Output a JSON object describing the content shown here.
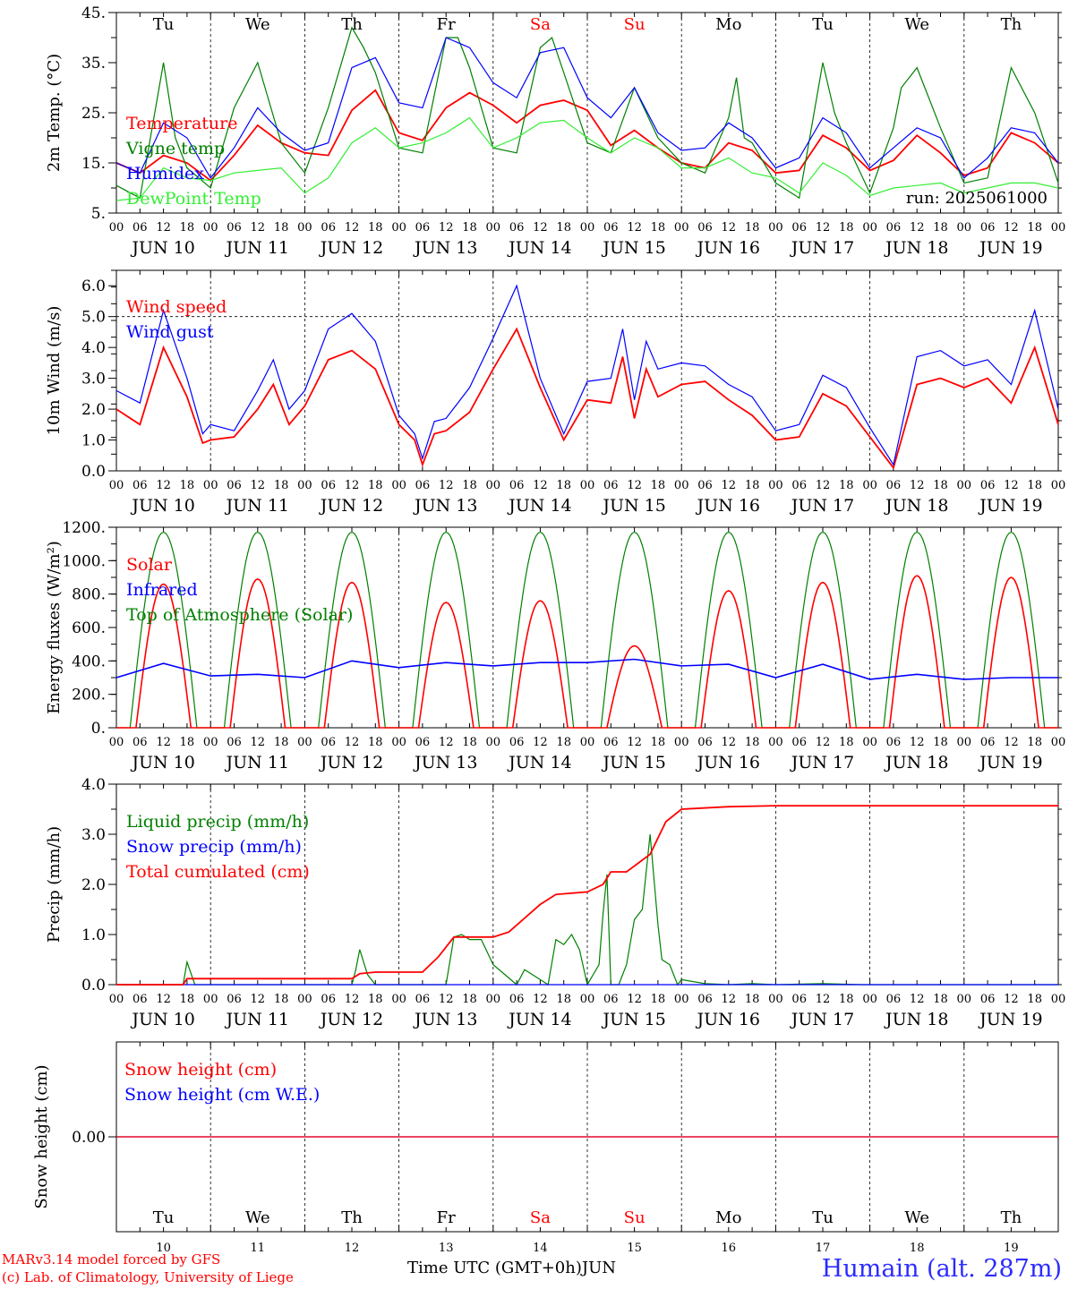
{
  "run_label": "run: 2025061000",
  "day_names": [
    "Tu",
    "We",
    "Th",
    "Fr",
    "Sa",
    "Su",
    "Mo",
    "Tu",
    "We",
    "Th"
  ],
  "weekend_days": [
    4,
    5
  ],
  "date_labels": [
    "JUN 10",
    "JUN 11",
    "JUN 12",
    "JUN 13",
    "JUN 14",
    "JUN 15",
    "JUN 16",
    "JUN 17",
    "JUN 18",
    "JUN 19"
  ],
  "day_numbers": [
    "10",
    "11",
    "12",
    "13",
    "14",
    "15",
    "16",
    "17",
    "18",
    "19"
  ],
  "hour_ticks": [
    "00",
    "06",
    "12",
    "18"
  ],
  "month_label": "JUN",
  "footer": {
    "model": "MARv3.14 model forced by GFS",
    "copyright": "(c) Lab. of Climatology, University of Liege",
    "time_label": "Time UTC (GMT+0h)",
    "station": "Humain (alt. 287m)"
  },
  "colors": {
    "red": "#ff0000",
    "green": "#008000",
    "blue": "#0000ff",
    "lightgreen": "#33ee33"
  },
  "chart_data": [
    {
      "type": "line",
      "ylabel": "2m Temp. (°C)",
      "ylim": [
        5,
        45
      ],
      "ytick_labels": [
        "5.",
        "15.",
        "25.",
        "35.",
        "45."
      ],
      "ytick_values": [
        5,
        15,
        25,
        35,
        45
      ],
      "x_unit": "hours since JUN 10 00 UTC",
      "series": [
        {
          "name": "Temperature",
          "color": "#ff0000",
          "x": [
            0,
            6,
            12,
            18,
            24,
            30,
            36,
            42,
            48,
            54,
            60,
            66,
            72,
            78,
            84,
            90,
            96,
            102,
            108,
            114,
            120,
            126,
            132,
            138,
            144,
            150,
            156,
            162,
            168,
            174,
            180,
            186,
            192,
            198,
            204,
            210,
            216,
            222,
            228,
            234,
            240
          ],
          "y": [
            15,
            13,
            16.5,
            15,
            11.5,
            16.5,
            22.5,
            19,
            17,
            16.5,
            25.5,
            29.5,
            21,
            19.5,
            26,
            29,
            26.5,
            23,
            26.5,
            27.5,
            25.5,
            18.5,
            21.5,
            18,
            15,
            14,
            19,
            17.5,
            13,
            13.5,
            20.5,
            18,
            13.5,
            15.5,
            20.5,
            17,
            12.5,
            14,
            21,
            19,
            15
          ]
        },
        {
          "name": "Vigne temp",
          "color": "#008000",
          "x": [
            0,
            6,
            12,
            15,
            18,
            24,
            30,
            36,
            42,
            48,
            54,
            60,
            63,
            66,
            72,
            78,
            84,
            87,
            90,
            96,
            102,
            108,
            111,
            114,
            120,
            126,
            132,
            138,
            144,
            150,
            156,
            158,
            160,
            162,
            168,
            174,
            180,
            183,
            186,
            192,
            198,
            200,
            204,
            210,
            216,
            222,
            228,
            234,
            240
          ],
          "y": [
            10.5,
            8,
            35,
            20,
            14,
            10,
            26,
            35,
            19,
            13,
            26,
            42,
            38,
            33,
            18,
            17,
            40,
            40,
            34,
            18,
            17,
            38,
            40,
            33,
            19,
            17,
            30,
            20,
            15,
            13,
            24,
            32,
            20,
            19,
            11,
            8,
            35,
            25,
            19,
            9,
            22,
            30,
            34,
            22,
            11,
            12,
            34,
            25,
            11
          ]
        },
        {
          "name": "Humidex",
          "color": "#0000ff",
          "x": [
            0,
            6,
            12,
            18,
            24,
            30,
            36,
            42,
            48,
            54,
            60,
            66,
            72,
            78,
            84,
            90,
            96,
            102,
            108,
            114,
            120,
            126,
            132,
            138,
            144,
            150,
            156,
            162,
            168,
            174,
            180,
            186,
            192,
            198,
            204,
            210,
            216,
            222,
            228,
            234,
            240
          ],
          "y": [
            15,
            13,
            23,
            20,
            12,
            18,
            26,
            21,
            17.5,
            19,
            34,
            36,
            27,
            26,
            40,
            38,
            31,
            28,
            37,
            38,
            28,
            24,
            30,
            21,
            17.5,
            18,
            23,
            20,
            14,
            16,
            24,
            21,
            14,
            18,
            22,
            20,
            12,
            16,
            22,
            21,
            15
          ]
        },
        {
          "name": "DewPoint Temp",
          "color": "#33ee33",
          "x": [
            0,
            6,
            12,
            18,
            24,
            30,
            36,
            42,
            48,
            54,
            60,
            66,
            72,
            78,
            84,
            90,
            96,
            102,
            108,
            114,
            120,
            126,
            132,
            138,
            144,
            150,
            156,
            162,
            168,
            174,
            180,
            186,
            192,
            198,
            204,
            210,
            216,
            222,
            228,
            234,
            240
          ],
          "y": [
            7.5,
            8,
            14,
            12,
            11.5,
            13,
            13.5,
            14,
            9,
            12,
            19,
            22,
            18,
            19,
            21,
            24,
            18,
            20,
            23,
            23.5,
            20,
            17,
            20,
            18,
            14,
            14,
            16,
            13,
            12,
            9,
            15,
            12.5,
            8.5,
            10,
            10.5,
            11,
            9,
            10,
            11,
            11,
            10
          ]
        }
      ]
    },
    {
      "type": "line",
      "ylabel": "10m Wind (m/s)",
      "ylim": [
        0,
        6.5
      ],
      "ytick_labels": [
        "0.0",
        "1.0",
        "2.0",
        "3.0",
        "4.0",
        "5.0",
        "6.0"
      ],
      "ytick_values": [
        0,
        1,
        2,
        3,
        4,
        5,
        6
      ],
      "reference_line": 5,
      "series": [
        {
          "name": "Wind speed",
          "color": "#ff0000",
          "x": [
            0,
            6,
            12,
            18,
            22,
            24,
            30,
            36,
            40,
            44,
            48,
            54,
            60,
            66,
            72,
            76,
            78,
            81,
            84,
            90,
            96,
            102,
            108,
            114,
            120,
            126,
            129,
            132,
            135,
            138,
            144,
            150,
            156,
            162,
            168,
            174,
            180,
            186,
            192,
            198,
            204,
            210,
            216,
            222,
            228,
            234,
            240
          ],
          "y": [
            2,
            1.5,
            4,
            2.4,
            0.9,
            1,
            1.1,
            2,
            2.8,
            1.5,
            2.1,
            3.6,
            3.9,
            3.3,
            1.5,
            1,
            0.2,
            1.2,
            1.3,
            1.9,
            3.3,
            4.6,
            2.7,
            1,
            2.3,
            2.2,
            3.7,
            1.7,
            3.3,
            2.4,
            2.8,
            2.9,
            2.3,
            1.8,
            1,
            1.1,
            2.5,
            2.1,
            1.1,
            0.1,
            2.8,
            3,
            2.7,
            3,
            2.2,
            4,
            1.5
          ]
        },
        {
          "name": "Wind gust",
          "color": "#0000ff",
          "x": [
            0,
            6,
            12,
            18,
            22,
            24,
            30,
            36,
            40,
            44,
            48,
            54,
            60,
            66,
            72,
            76,
            78,
            81,
            84,
            90,
            96,
            102,
            108,
            114,
            120,
            126,
            129,
            132,
            135,
            138,
            144,
            150,
            156,
            162,
            168,
            174,
            180,
            186,
            192,
            198,
            204,
            210,
            216,
            222,
            228,
            234,
            240
          ],
          "y": [
            2.6,
            2.2,
            5.2,
            3,
            1.2,
            1.5,
            1.3,
            2.6,
            3.6,
            2,
            2.6,
            4.6,
            5.1,
            4.2,
            1.8,
            1.2,
            0.4,
            1.6,
            1.7,
            2.7,
            4.3,
            6,
            3,
            1.2,
            2.9,
            3,
            4.6,
            2.3,
            4.2,
            3.3,
            3.5,
            3.4,
            2.8,
            2.4,
            1.3,
            1.5,
            3.1,
            2.7,
            1.4,
            0.2,
            3.7,
            3.9,
            3.4,
            3.6,
            2.8,
            5.2,
            2
          ]
        }
      ]
    },
    {
      "type": "line",
      "ylabel": "Energy fluxes (W/m²)",
      "ylim": [
        0,
        1200
      ],
      "ytick_labels": [
        "0.",
        "200.",
        "400.",
        "600.",
        "800.",
        "1000.",
        "1200."
      ],
      "ytick_values": [
        0,
        200,
        400,
        600,
        800,
        1000,
        1200
      ],
      "series": [
        {
          "name": "Solar",
          "color": "#ff0000",
          "daily_peaks": [
            860,
            890,
            870,
            750,
            760,
            490,
            820,
            870,
            910,
            900
          ]
        },
        {
          "name": "Infrared",
          "color": "#0000ff",
          "x": [
            0,
            12,
            24,
            36,
            48,
            60,
            72,
            84,
            96,
            108,
            120,
            132,
            144,
            156,
            168,
            180,
            192,
            204,
            216,
            228,
            240
          ],
          "y": [
            300,
            385,
            310,
            320,
            300,
            400,
            360,
            390,
            370,
            390,
            390,
            410,
            370,
            380,
            300,
            380,
            290,
            320,
            290,
            300,
            300
          ]
        },
        {
          "name": "Top of Atmosphere (Solar)",
          "color": "#008000",
          "daily_peak": 1170
        }
      ]
    },
    {
      "type": "line",
      "ylabel": "Precip (mm/h)",
      "ylim": [
        0,
        4
      ],
      "ytick_labels": [
        "0.0",
        "1.0",
        "2.0",
        "3.0",
        "4.0"
      ],
      "ytick_values": [
        0,
        1,
        2,
        3,
        4
      ],
      "series": [
        {
          "name": "Liquid precip (mm/h)",
          "color": "#008000",
          "x": [
            0,
            17,
            18,
            20,
            22,
            24,
            60,
            61,
            62,
            64,
            66,
            84,
            86,
            88,
            90,
            93,
            96,
            102,
            104,
            106,
            110,
            112,
            114,
            116,
            118,
            120,
            123,
            124,
            125,
            126,
            128,
            130,
            132,
            134,
            136,
            138,
            139,
            141,
            143,
            144,
            150,
            156,
            162,
            168,
            180,
            190,
            200,
            240
          ],
          "y": [
            0,
            0,
            0.45,
            0,
            0,
            0,
            0,
            0.3,
            0.7,
            0.2,
            0,
            0,
            0.95,
            1,
            0.9,
            0.9,
            0.4,
            0,
            0.3,
            0.2,
            0,
            0.9,
            0.8,
            1,
            0.7,
            0,
            0.4,
            1.4,
            2.2,
            0,
            0,
            0.4,
            1.3,
            1.5,
            3,
            1.2,
            0.5,
            0.4,
            0,
            0.1,
            0.02,
            0,
            0.02,
            0,
            0.02,
            0,
            0,
            0
          ]
        },
        {
          "name": "Snow precip (mm/h)",
          "color": "#0000ff",
          "x": [
            0,
            240
          ],
          "y": [
            0,
            0
          ]
        },
        {
          "name": "Total cumulated (cm)",
          "color": "#ff0000",
          "x": [
            0,
            17,
            18,
            24,
            60,
            62,
            66,
            72,
            78,
            82,
            86,
            90,
            96,
            100,
            108,
            112,
            120,
            124,
            126,
            130,
            136,
            140,
            144,
            156,
            168,
            240
          ],
          "y": [
            0,
            0,
            0.12,
            0.12,
            0.12,
            0.22,
            0.25,
            0.25,
            0.25,
            0.55,
            0.95,
            0.95,
            0.95,
            1.05,
            1.6,
            1.8,
            1.85,
            2.0,
            2.25,
            2.25,
            2.6,
            3.25,
            3.5,
            3.55,
            3.57,
            3.57
          ]
        }
      ]
    },
    {
      "type": "line",
      "ylabel": "Snow height (cm)",
      "ytick_labels": [
        "0.00"
      ],
      "ytick_values": [
        0
      ],
      "series": [
        {
          "name": "Snow height (cm)",
          "color": "#ff0000",
          "x": [
            0,
            240
          ],
          "y": [
            0,
            0
          ]
        },
        {
          "name": "Snow height (cm W.E.)",
          "color": "#0000ff",
          "x": [
            0,
            240
          ],
          "y": [
            0,
            0
          ]
        }
      ]
    }
  ]
}
